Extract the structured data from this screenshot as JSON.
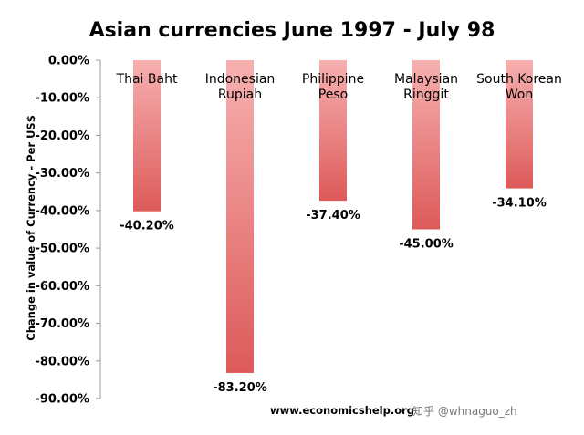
{
  "chart_data": {
    "type": "bar",
    "title": "Asian currencies June 1997 - July 98",
    "ylabel": "Change in value of Currency - Per US$",
    "xlabel": "",
    "categories": [
      "Thai Baht",
      "Indonesian Rupiah",
      "Philippine Peso",
      "Malaysian Ringgit",
      "South Korean Won"
    ],
    "category_lines": [
      [
        "Thai Baht"
      ],
      [
        "Indonesian",
        "Rupiah"
      ],
      [
        "Philippine",
        "Peso"
      ],
      [
        "Malaysian",
        "Ringgit"
      ],
      [
        "South Korean",
        "Won"
      ]
    ],
    "values": [
      -40.2,
      -83.2,
      -37.4,
      -45.0,
      -34.1
    ],
    "data_labels": [
      "-40.20%",
      "-83.20%",
      "-37.40%",
      "-45.00%",
      "-34.10%"
    ],
    "ylim": [
      -90,
      0
    ],
    "yticks": [
      0,
      -10,
      -20,
      -30,
      -40,
      -50,
      -60,
      -70,
      -80,
      -90
    ],
    "ytick_labels": [
      "0.00%",
      "-10.00%",
      "-20.00%",
      "-30.00%",
      "-40.00%",
      "-50.00%",
      "-60.00%",
      "-70.00%",
      "-80.00%",
      "-90.00%"
    ],
    "grid": false,
    "legend": "none",
    "bar_color_top": "#f7b0b0",
    "bar_color_bottom": "#dd5a5a",
    "source": "www.economicshelp.org"
  },
  "watermark": "知乎 @whnaguo_zh"
}
